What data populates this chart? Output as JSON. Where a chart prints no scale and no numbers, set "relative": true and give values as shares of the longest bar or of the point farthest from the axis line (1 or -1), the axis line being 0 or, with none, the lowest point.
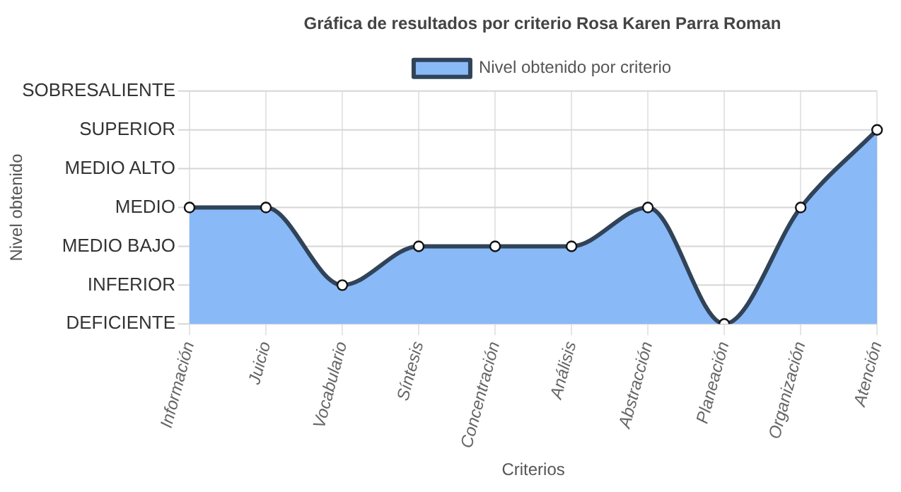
{
  "chart_data": {
    "type": "area",
    "title": "Gráfica de resultados por criterio Rosa Karen Parra Roman",
    "xlabel": "Criterios",
    "annotations": [
      "Nivel obtenido"
    ],
    "categories": [
      "Información",
      "Juicio",
      "Vocabulario",
      "Síntesis",
      "Concentración",
      "Análisis",
      "Abstracción",
      "Planeación",
      "Organización",
      "Atención"
    ],
    "series": [
      {
        "name": "Nivel obtenido por criterio",
        "color": "#89b9f6",
        "values": [
          0.6,
          0.6,
          0.2,
          0.4,
          0.4,
          0.4,
          0.6,
          0,
          0.6,
          1
        ]
      }
    ],
    "relative": true,
    "ref_lines": [
      {
        "axis": "y",
        "value": 0,
        "label": "DEFICIENTE",
        "color": "#d6d6d6"
      },
      {
        "axis": "y",
        "value": 0.2,
        "label": "INFERIOR",
        "color": "#d6d6d6"
      },
      {
        "axis": "y",
        "value": 0.4,
        "label": "MEDIO BAJO",
        "color": "#d6d6d6"
      },
      {
        "axis": "y",
        "value": 0.6,
        "label": "MEDIO",
        "color": "#d6d6d6"
      },
      {
        "axis": "y",
        "value": 0.8,
        "label": "MEDIO ALTO",
        "color": "#d6d6d6"
      },
      {
        "axis": "y",
        "value": 1,
        "label": "SUPERIOR",
        "color": "#d6d6d6"
      },
      {
        "axis": "y",
        "value": 1.2,
        "label": "SOBRESALIENTE",
        "color": "#d6d6d6"
      }
    ],
    "grid": "x",
    "legend": "top",
    "marker": "circle",
    "line_style": "solid"
  }
}
